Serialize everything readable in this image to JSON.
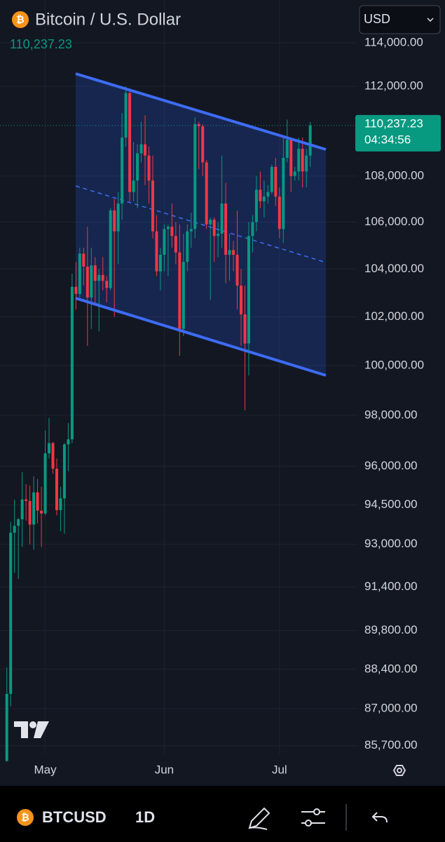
{
  "chart_data": {
    "type": "candlestick",
    "title": "Bitcoin / U.S. Dollar",
    "price_label": "110,237.23",
    "currency": "USD",
    "countdown": "04:34:56",
    "symbol": "BTCUSD",
    "interval": "1D",
    "log_scale": true,
    "grid": true,
    "up_color": "#089981",
    "down_color": "#f23645",
    "categories": [
      null,
      null,
      null,
      null,
      null,
      null,
      null,
      null,
      null,
      null,
      "May",
      null,
      null,
      null,
      null,
      null,
      null,
      null,
      null,
      null,
      null,
      null,
      null,
      null,
      null,
      null,
      null,
      null,
      null,
      null,
      null,
      null,
      null,
      null,
      null,
      null,
      null,
      null,
      null,
      null,
      null,
      "Jun",
      null,
      null,
      null,
      null,
      null,
      null,
      null,
      null,
      null,
      null,
      null,
      null,
      null,
      null,
      null,
      null,
      null,
      null,
      null,
      null,
      null,
      null,
      null,
      null,
      null,
      null,
      null,
      null,
      null,
      "Jul",
      null,
      null,
      null,
      null,
      null,
      null,
      null,
      null
    ],
    "open": [
      85170,
      87520,
      93440,
      93700,
      93950,
      94710,
      94650,
      93750,
      94980,
      94280,
      94170,
      96500,
      96900,
      95900,
      94300,
      94750,
      96850,
      97050,
      103250,
      102950,
      104650,
      104100,
      102800,
      104150,
      103500,
      103750,
      103500,
      103200,
      106500,
      105600,
      106800,
      109700,
      111700,
      107300,
      107800,
      109000,
      109400,
      108900,
      107800,
      105600,
      103900,
      104600,
      105700,
      105800,
      105400,
      104700,
      101500,
      104300,
      105600,
      105700,
      110300,
      110200,
      108600,
      105900,
      106100,
      105400,
      105500,
      106800,
      104600,
      104800,
      104600,
      103300,
      102100,
      100900,
      105400,
      106000,
      107400,
      106900,
      107100,
      107300,
      108400,
      107100,
      105700,
      108800,
      109600,
      108000,
      108200,
      109200,
      108200,
      108900
    ],
    "high": [
      88460,
      93850,
      94700,
      94000,
      95760,
      95300,
      95250,
      95600,
      95500,
      95200,
      97400,
      97900,
      96950,
      96300,
      95200,
      96900,
      97700,
      103800,
      104300,
      104900,
      104900,
      105800,
      104900,
      104500,
      104000,
      104500,
      103700,
      106600,
      107000,
      107300,
      110800,
      112000,
      111900,
      109500,
      109400,
      110400,
      110700,
      109300,
      108900,
      106300,
      104900,
      105900,
      105900,
      106800,
      106000,
      105900,
      105500,
      105900,
      106400,
      110600,
      110400,
      110300,
      108700,
      106200,
      106200,
      106000,
      108900,
      107700,
      105500,
      105200,
      106500,
      104000,
      103300,
      106000,
      106300,
      108000,
      108200,
      107800,
      107600,
      108500,
      108800,
      107500,
      109800,
      110500,
      109700,
      108400,
      109700,
      109700,
      109200,
      110400
    ],
    "low": [
      85140,
      87080,
      91930,
      91700,
      92900,
      93900,
      93000,
      92800,
      93800,
      92900,
      94100,
      96300,
      95700,
      94100,
      93500,
      93400,
      95800,
      96900,
      102300,
      102800,
      103300,
      100800,
      101500,
      102500,
      101400,
      103100,
      102600,
      103100,
      102000,
      104200,
      106100,
      109300,
      106900,
      106900,
      106600,
      108600,
      107600,
      106800,
      105300,
      103700,
      103100,
      103900,
      103700,
      104900,
      104200,
      100400,
      101200,
      103900,
      104900,
      105300,
      108300,
      108000,
      105700,
      102700,
      104300,
      104500,
      104900,
      103400,
      103500,
      103900,
      102300,
      100800,
      98200,
      99600,
      104700,
      105600,
      106600,
      106200,
      106800,
      107200,
      106700,
      105300,
      105100,
      108600,
      107300,
      107800,
      107800,
      107500,
      107500,
      108400
    ],
    "close": [
      87520,
      93440,
      93700,
      93950,
      94710,
      94650,
      93750,
      94980,
      94280,
      94170,
      96500,
      96900,
      95900,
      94300,
      94750,
      96850,
      97050,
      103250,
      102950,
      104650,
      104100,
      102800,
      104150,
      103500,
      103750,
      103500,
      103200,
      106500,
      105600,
      106800,
      109700,
      111700,
      107300,
      107800,
      109000,
      109400,
      108900,
      107800,
      105600,
      103900,
      104600,
      105700,
      105800,
      105400,
      104700,
      101500,
      104300,
      105600,
      105700,
      110300,
      110200,
      108600,
      105900,
      106100,
      105400,
      105500,
      106800,
      104600,
      104800,
      104600,
      103300,
      102100,
      100900,
      105400,
      106000,
      107400,
      106900,
      107100,
      107300,
      108400,
      107100,
      105700,
      108800,
      109600,
      108000,
      108200,
      109200,
      108200,
      108900,
      110237.23
    ],
    "ylim": [
      85400,
      116000
    ],
    "yticks": [
      {
        "value": 114000,
        "label": "114,000.00"
      },
      {
        "value": 112000,
        "label": "112,000.00"
      },
      {
        "value": 108000,
        "label": "108,000.00"
      },
      {
        "value": 106000,
        "label": "106,000.00"
      },
      {
        "value": 104000,
        "label": "104,000.00"
      },
      {
        "value": 102000,
        "label": "102,000.00"
      },
      {
        "value": 100000,
        "label": "100,000.00"
      },
      {
        "value": 98000,
        "label": "98,000.00"
      },
      {
        "value": 96000,
        "label": "96,000.00"
      },
      {
        "value": 94500,
        "label": "94,500.00"
      },
      {
        "value": 93000,
        "label": "93,000.00"
      },
      {
        "value": 91400,
        "label": "91,400.00"
      },
      {
        "value": 89800,
        "label": "89,800.00"
      },
      {
        "value": 88400,
        "label": "88,400.00"
      },
      {
        "value": 87000,
        "label": "87,000.00"
      },
      {
        "value": 85700,
        "label": "85,700.00"
      }
    ]
  }
}
